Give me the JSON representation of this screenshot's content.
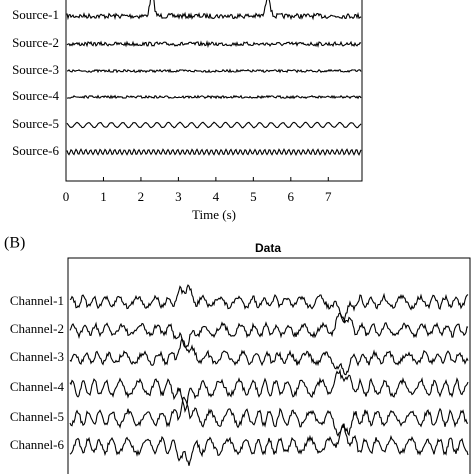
{
  "panels": [
    {
      "rows": [
        "Source-1",
        "Source-2",
        "Source-3",
        "Source-4",
        "Source-5",
        "Source-6"
      ],
      "xlim": [
        0,
        7.9
      ],
      "xticks": [
        0,
        1,
        2,
        3,
        4,
        5,
        6,
        7
      ],
      "xlabel": "Time (s)"
    },
    {
      "label": "(B)",
      "title": "Data",
      "rows": [
        "Channel-1",
        "Channel-2",
        "Channel-3",
        "Channel-4",
        "Channel-5",
        "Channel-6"
      ]
    }
  ]
}
